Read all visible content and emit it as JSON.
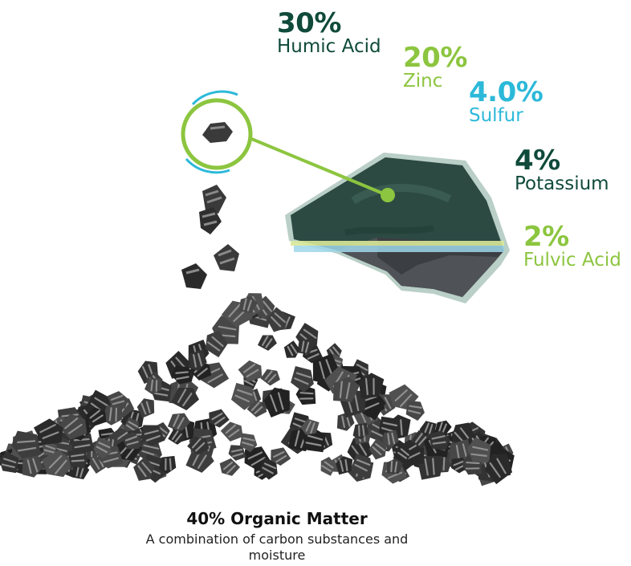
{
  "components": [
    {
      "percent": "30%",
      "name": "Humic Acid",
      "color": "#0f4a3a"
    },
    {
      "percent": "20%",
      "name": "Zinc",
      "color": "#8cc53f"
    },
    {
      "percent": "4.0%",
      "name": "Sulfur",
      "color": "#2cb9d9"
    },
    {
      "percent": "4%",
      "name": "Potassium",
      "color": "#0f4a3a"
    },
    {
      "percent": "2%",
      "name": "Fulvic Acid",
      "color": "#8cc53f"
    }
  ],
  "footer": {
    "title": "40% Organic Matter",
    "description": "A combination of carbon substances and moisture"
  },
  "colors": {
    "dark_green": "#0f4a3a",
    "light_green": "#8cc53f",
    "cyan": "#2cb9d9",
    "granule": "#3a3a3a"
  },
  "icons": {
    "magnifier": "magnifier-circle-icon",
    "granule_pile": "granule-pile-illustration",
    "chunk": "humate-chunk-illustration"
  }
}
